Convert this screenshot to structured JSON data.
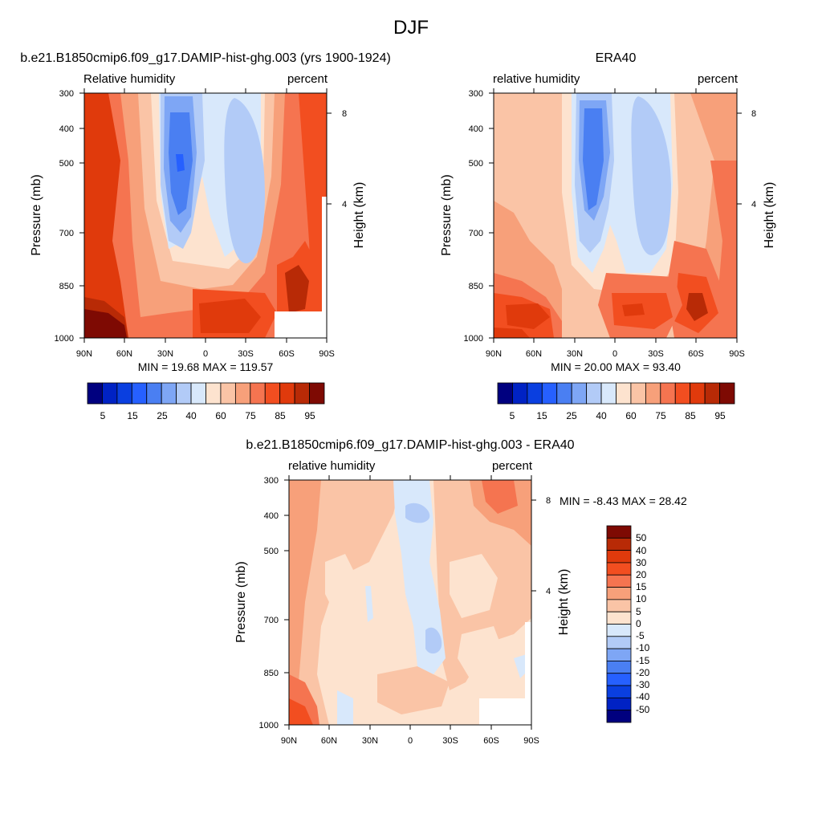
{
  "figure": {
    "title": "DJF"
  },
  "chart_data": [
    {
      "type": "heatmap",
      "panel": "model",
      "title": "b.e21.B1850cmip6.f09_g17.DAMIP-hist-ghg.003 (yrs 1900-1924)",
      "left_label": "Relative humidity",
      "right_label": "percent",
      "ylabel": "Pressure (mb)",
      "ylabel_right": "Height (km)",
      "x_ticks": [
        "90N",
        "60N",
        "30N",
        "0",
        "30S",
        "60S",
        "90S"
      ],
      "y_ticks": [
        "300",
        "400",
        "500",
        "700",
        "850",
        "1000"
      ],
      "y_right_ticks": [
        "8",
        "4"
      ],
      "stats": "MIN =  19.68  MAX = 119.57",
      "colorbar_labels": [
        "5",
        "15",
        "25",
        "40",
        "60",
        "75",
        "85",
        "95"
      ],
      "z_min": 19.68,
      "z_max": 119.57
    },
    {
      "type": "heatmap",
      "panel": "obs",
      "title": "ERA40",
      "left_label": "relative humidity",
      "right_label": "percent",
      "ylabel": "Pressure (mb)",
      "ylabel_right": "Height (km)",
      "x_ticks": [
        "90N",
        "60N",
        "30N",
        "0",
        "30S",
        "60S",
        "90S"
      ],
      "y_ticks": [
        "300",
        "400",
        "500",
        "700",
        "850",
        "1000"
      ],
      "y_right_ticks": [
        "8",
        "4"
      ],
      "stats": "MIN =  20.00  MAX =  93.40",
      "colorbar_labels": [
        "5",
        "15",
        "25",
        "40",
        "60",
        "75",
        "85",
        "95"
      ],
      "z_min": 20.0,
      "z_max": 93.4
    },
    {
      "type": "heatmap",
      "panel": "diff",
      "title": "b.e21.B1850cmip6.f09_g17.DAMIP-hist-ghg.003 - ERA40",
      "left_label": "relative humidity",
      "right_label": "percent",
      "ylabel": "Pressure (mb)",
      "ylabel_right": "Height (km)",
      "x_ticks": [
        "90N",
        "60N",
        "30N",
        "0",
        "30S",
        "60S",
        "90S"
      ],
      "y_ticks": [
        "300",
        "400",
        "500",
        "700",
        "850",
        "1000"
      ],
      "y_right_ticks": [
        "8",
        "4"
      ],
      "stats": "MIN =  -8.43  MAX =  28.42",
      "colorbar_labels": [
        "50",
        "40",
        "30",
        "20",
        "15",
        "10",
        "5",
        "0",
        "-5",
        "-10",
        "-15",
        "-20",
        "-30",
        "-40",
        "-50"
      ],
      "z_min": -8.43,
      "z_max": 28.42
    }
  ],
  "palette": {
    "rh": [
      "#00007f",
      "#0022c4",
      "#0a3fe0",
      "#2660ff",
      "#4a7ff2",
      "#7ea6f5",
      "#b2cbf7",
      "#d8e8fb",
      "#fde3cf",
      "#fac4a6",
      "#f7a07a",
      "#f57450",
      "#f24e20",
      "#e03a0c",
      "#b82a06",
      "#7e0a03"
    ],
    "diff": [
      "#7e0a03",
      "#b82a06",
      "#e03a0c",
      "#f24e20",
      "#f57450",
      "#f7a07a",
      "#fac4a6",
      "#fde3cf",
      "#d8e8fb",
      "#b2cbf7",
      "#7ea6f5",
      "#4a7ff2",
      "#2660ff",
      "#0a3fe0",
      "#0022c4",
      "#00007f"
    ]
  }
}
